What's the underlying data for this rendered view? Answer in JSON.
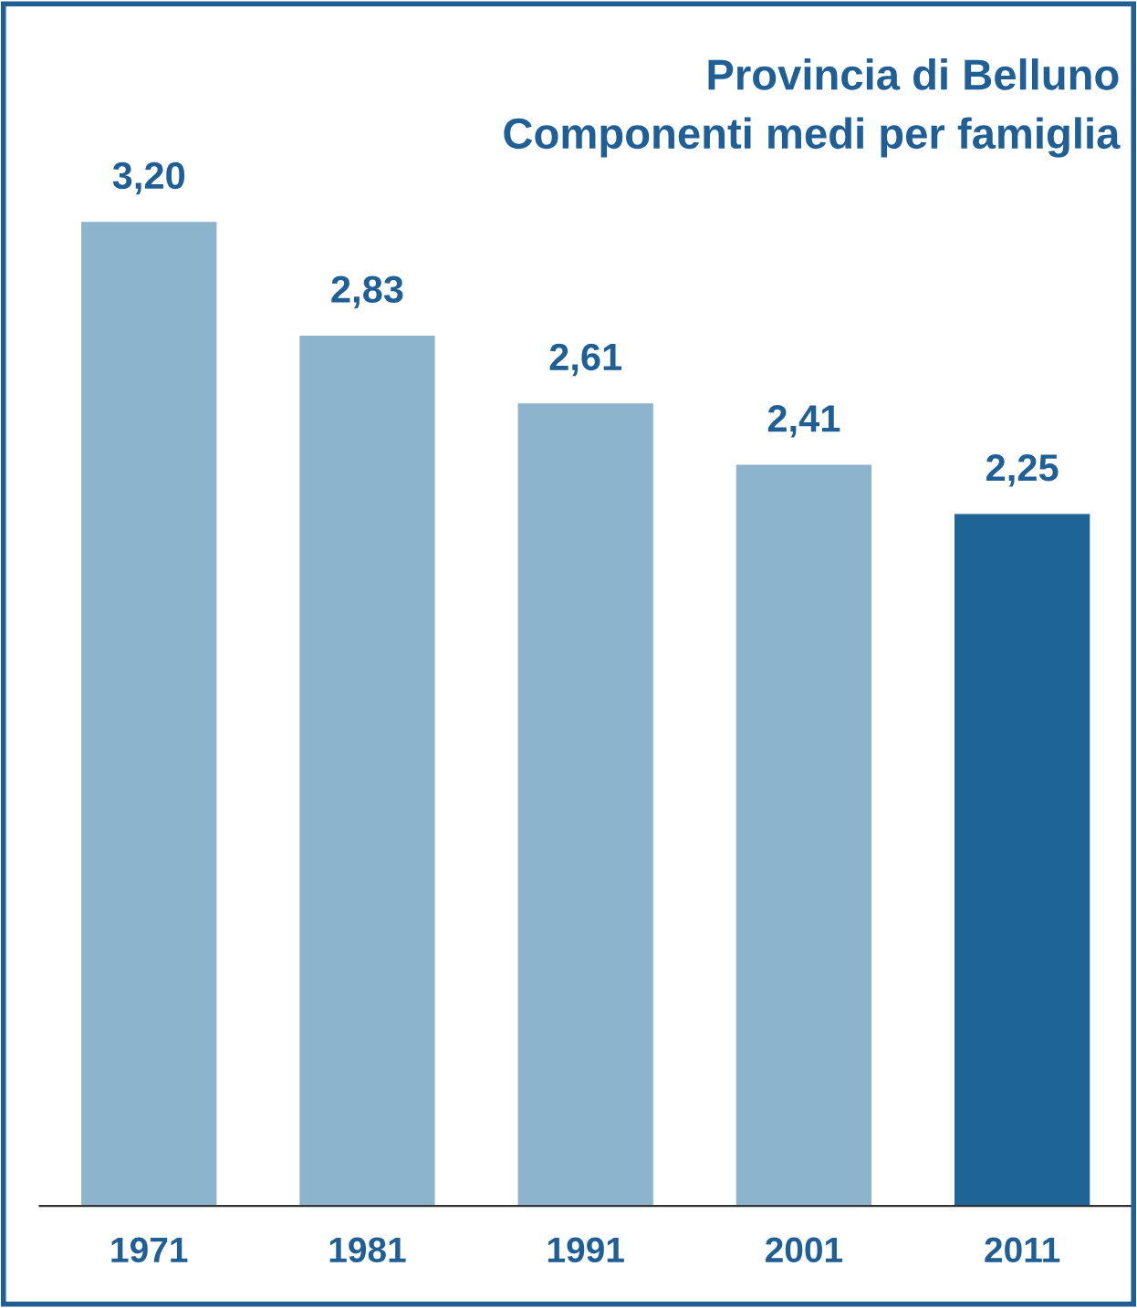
{
  "chart_data": {
    "type": "bar",
    "title": "Provincia di Belluno",
    "subtitle": "Componenti medi per famiglia",
    "categories": [
      "1971",
      "1981",
      "1991",
      "2001",
      "2011"
    ],
    "values": [
      3.2,
      2.83,
      2.61,
      2.41,
      2.25
    ],
    "value_labels": [
      "3,20",
      "2,83",
      "2,61",
      "2,41",
      "2,25"
    ],
    "colors": [
      "#8db4cd",
      "#8db4cd",
      "#8db4cd",
      "#8db4cd",
      "#1f6496"
    ],
    "tick_labels": "x",
    "grid": false,
    "legend": false
  }
}
